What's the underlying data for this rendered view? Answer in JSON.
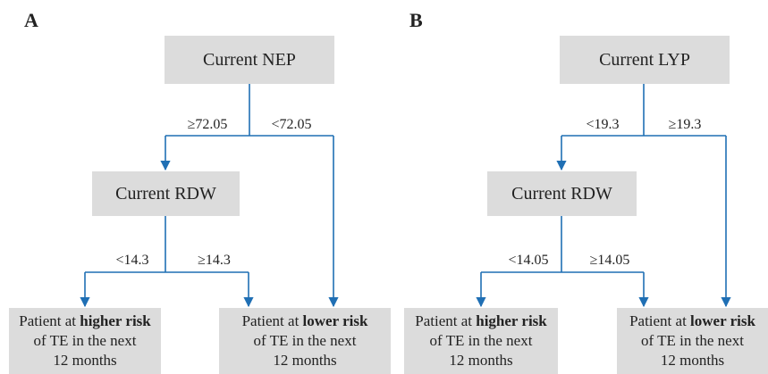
{
  "panels": [
    {
      "label": "A",
      "root": "Current NEP",
      "split1": {
        "left": "≥72.05",
        "right": "<72.05"
      },
      "middle": "Current RDW",
      "split2": {
        "left": "<14.3",
        "right": "≥14.3"
      },
      "leaves": [
        {
          "line1": {
            "plain": "Patient at ",
            "bold": "higher risk"
          },
          "line2": "of TE in the next",
          "line3": "12 months"
        },
        {
          "line1": {
            "plain": "Patient at ",
            "bold": "lower risk"
          },
          "line2": "of TE in the next",
          "line3": "12 months"
        }
      ]
    },
    {
      "label": "B",
      "root": "Current LYP",
      "split1": {
        "left": "<19.3",
        "right": "≥19.3"
      },
      "middle": "Current RDW",
      "split2": {
        "left": "<14.05",
        "right": "≥14.05"
      },
      "leaves": [
        {
          "line1": {
            "plain": "Patient at ",
            "bold": "higher risk"
          },
          "line2": "of TE in the next",
          "line3": "12 months"
        },
        {
          "line1": {
            "plain": "Patient at ",
            "bold": "lower risk"
          },
          "line2": "of TE in the next",
          "line3": "12 months"
        }
      ]
    }
  ]
}
